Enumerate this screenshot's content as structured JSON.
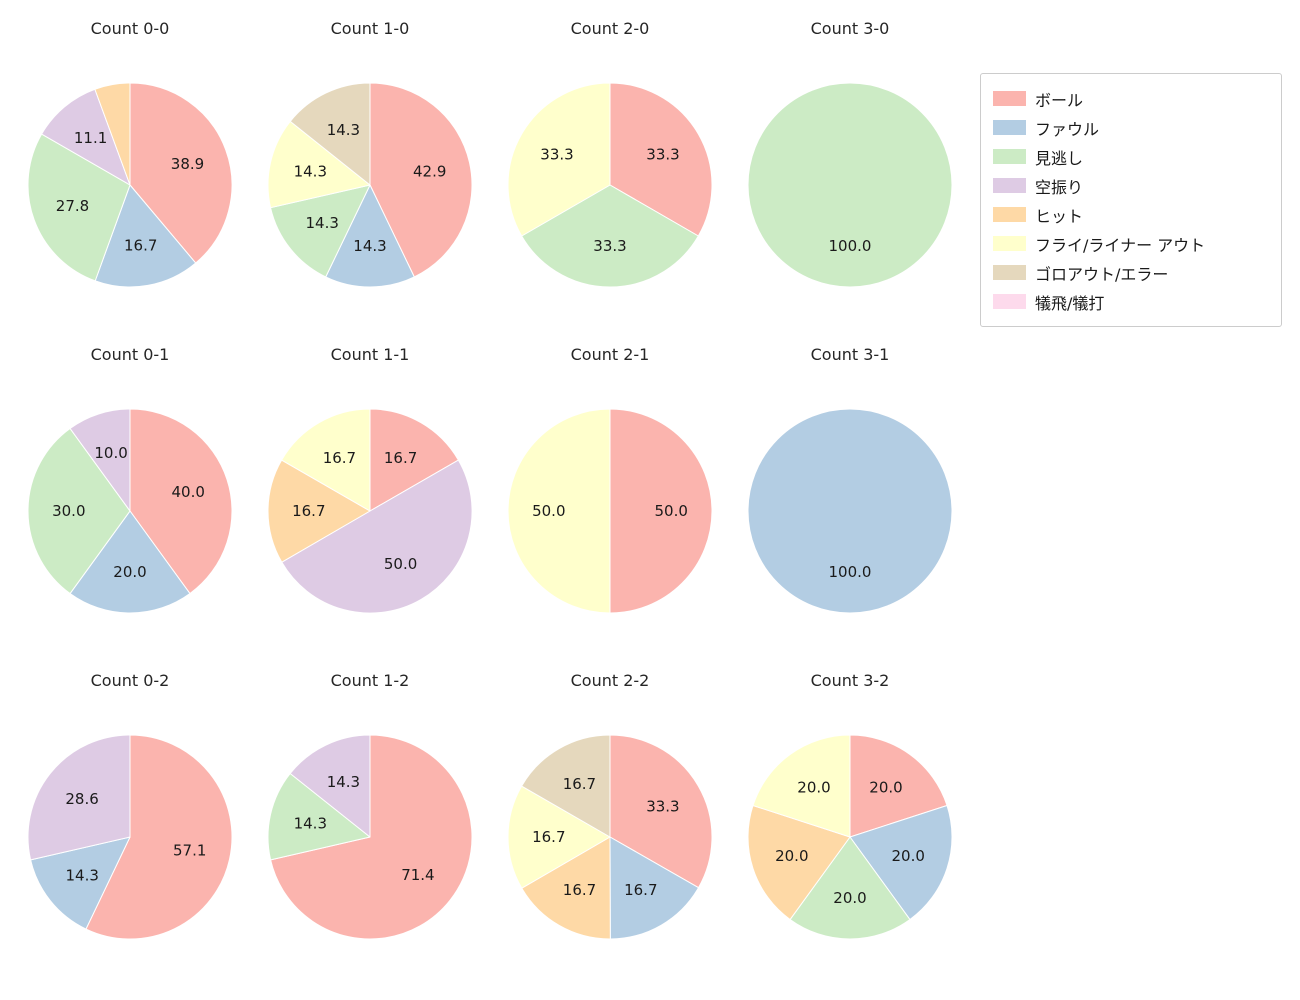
{
  "page": {
    "background": "#ffffff"
  },
  "category_colors": {
    "ボール": "#fbb4ae",
    "ファウル": "#b3cde3",
    "見逃し": "#ccebc5",
    "空振り": "#decbe4",
    "ヒット": "#fed9a6",
    "フライ/ライナー アウト": "#ffffcc",
    "ゴロアウト/エラー": "#e5d8bd",
    "犠飛/犠打": "#fddaec"
  },
  "legend": {
    "items": [
      {
        "label": "ボール",
        "color": "#fbb4ae"
      },
      {
        "label": "ファウル",
        "color": "#b3cde3"
      },
      {
        "label": "見逃し",
        "color": "#ccebc5"
      },
      {
        "label": "空振り",
        "color": "#decbe4"
      },
      {
        "label": "ヒット",
        "color": "#fed9a6"
      },
      {
        "label": "フライ/ライナー アウト",
        "color": "#ffffcc"
      },
      {
        "label": "ゴロアウト/エラー",
        "color": "#e5d8bd"
      },
      {
        "label": "犠飛/犠打",
        "color": "#fddaec"
      }
    ]
  },
  "chart_data": [
    {
      "type": "pie",
      "title": "Count 0-0",
      "unit": "%",
      "start_angle": 90,
      "direction": "clockwise",
      "label_distance": 0.6,
      "slices": [
        {
          "category": "ボール",
          "value": 38.9
        },
        {
          "category": "ファウル",
          "value": 16.7
        },
        {
          "category": "見逃し",
          "value": 27.8
        },
        {
          "category": "空振り",
          "value": 11.1
        },
        {
          "category": "ヒット",
          "value": 5.6,
          "show_label": false
        }
      ]
    },
    {
      "type": "pie",
      "title": "Count 1-0",
      "unit": "%",
      "start_angle": 90,
      "direction": "clockwise",
      "label_distance": 0.6,
      "slices": [
        {
          "category": "ボール",
          "value": 42.9
        },
        {
          "category": "ファウル",
          "value": 14.3
        },
        {
          "category": "見逃し",
          "value": 14.3
        },
        {
          "category": "フライ/ライナー アウト",
          "value": 14.3
        },
        {
          "category": "ゴロアウト/エラー",
          "value": 14.3
        }
      ]
    },
    {
      "type": "pie",
      "title": "Count 2-0",
      "unit": "%",
      "start_angle": 90,
      "direction": "clockwise",
      "label_distance": 0.6,
      "slices": [
        {
          "category": "ボール",
          "value": 33.3
        },
        {
          "category": "見逃し",
          "value": 33.3
        },
        {
          "category": "フライ/ライナー アウト",
          "value": 33.3
        }
      ]
    },
    {
      "type": "pie",
      "title": "Count 3-0",
      "unit": "%",
      "start_angle": 90,
      "direction": "clockwise",
      "label_distance": 0.6,
      "slices": [
        {
          "category": "見逃し",
          "value": 100.0
        }
      ]
    },
    {
      "type": "pie",
      "title": "Count 0-1",
      "unit": "%",
      "start_angle": 90,
      "direction": "clockwise",
      "label_distance": 0.6,
      "slices": [
        {
          "category": "ボール",
          "value": 40.0
        },
        {
          "category": "ファウル",
          "value": 20.0
        },
        {
          "category": "見逃し",
          "value": 30.0
        },
        {
          "category": "空振り",
          "value": 10.0
        }
      ]
    },
    {
      "type": "pie",
      "title": "Count 1-1",
      "unit": "%",
      "start_angle": 90,
      "direction": "clockwise",
      "label_distance": 0.6,
      "slices": [
        {
          "category": "ボール",
          "value": 16.7
        },
        {
          "category": "空振り",
          "value": 50.0
        },
        {
          "category": "ヒット",
          "value": 16.7
        },
        {
          "category": "フライ/ライナー アウト",
          "value": 16.7
        }
      ]
    },
    {
      "type": "pie",
      "title": "Count 2-1",
      "unit": "%",
      "start_angle": 90,
      "direction": "clockwise",
      "label_distance": 0.6,
      "slices": [
        {
          "category": "ボール",
          "value": 50.0
        },
        {
          "category": "フライ/ライナー アウト",
          "value": 50.0
        }
      ]
    },
    {
      "type": "pie",
      "title": "Count 3-1",
      "unit": "%",
      "start_angle": 90,
      "direction": "clockwise",
      "label_distance": 0.6,
      "slices": [
        {
          "category": "ファウル",
          "value": 100.0
        }
      ]
    },
    {
      "type": "pie",
      "title": "Count 0-2",
      "unit": "%",
      "start_angle": 90,
      "direction": "clockwise",
      "label_distance": 0.6,
      "slices": [
        {
          "category": "ボール",
          "value": 57.1
        },
        {
          "category": "ファウル",
          "value": 14.3
        },
        {
          "category": "空振り",
          "value": 28.6
        }
      ]
    },
    {
      "type": "pie",
      "title": "Count 1-2",
      "unit": "%",
      "start_angle": 90,
      "direction": "clockwise",
      "label_distance": 0.6,
      "slices": [
        {
          "category": "ボール",
          "value": 71.4
        },
        {
          "category": "見逃し",
          "value": 14.3
        },
        {
          "category": "空振り",
          "value": 14.3
        }
      ]
    },
    {
      "type": "pie",
      "title": "Count 2-2",
      "unit": "%",
      "start_angle": 90,
      "direction": "clockwise",
      "label_distance": 0.6,
      "slices": [
        {
          "category": "ボール",
          "value": 33.3
        },
        {
          "category": "ファウル",
          "value": 16.7
        },
        {
          "category": "ヒット",
          "value": 16.7
        },
        {
          "category": "フライ/ライナー アウト",
          "value": 16.7
        },
        {
          "category": "ゴロアウト/エラー",
          "value": 16.7
        }
      ]
    },
    {
      "type": "pie",
      "title": "Count 3-2",
      "unit": "%",
      "start_angle": 90,
      "direction": "clockwise",
      "label_distance": 0.6,
      "slices": [
        {
          "category": "ボール",
          "value": 20.0
        },
        {
          "category": "ファウル",
          "value": 20.0
        },
        {
          "category": "見逃し",
          "value": 20.0
        },
        {
          "category": "ヒット",
          "value": 20.0
        },
        {
          "category": "フライ/ライナー アウト",
          "value": 20.0
        }
      ]
    }
  ]
}
